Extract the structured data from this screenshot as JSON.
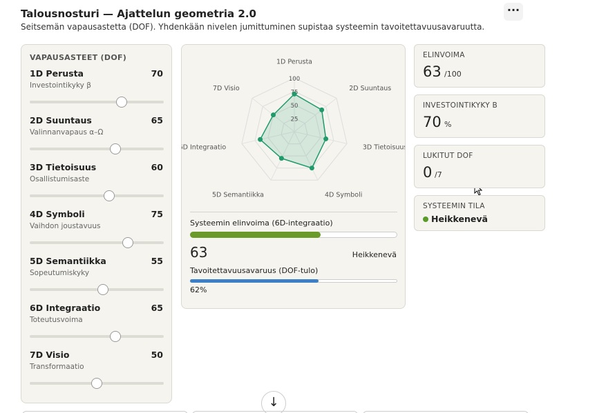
{
  "header": {
    "title": "Talousnosturi — Ajattelun geometria 2.0",
    "subtitle": "Seitsemän vapausastetta (DOF). Yhdenkään nivelen jumittuminen supistaa systeemin tavoitettavuusavaruutta."
  },
  "dof_panel": {
    "title": "VAPAUSASTEET (DOF)",
    "slider_range": [
      0,
      100
    ],
    "items": [
      {
        "name": "1D Perusta",
        "desc": "Investointikyky β",
        "value": 70
      },
      {
        "name": "2D Suuntaus",
        "desc": "Valinnanvapaus α–Ω",
        "value": 65
      },
      {
        "name": "3D Tietoisuus",
        "desc": "Osallistumisaste",
        "value": 60
      },
      {
        "name": "4D Symboli",
        "desc": "Vaihdon joustavuus",
        "value": 75
      },
      {
        "name": "5D Semantiikka",
        "desc": "Sopeutumiskyky",
        "value": 55
      },
      {
        "name": "6D Integraatio",
        "desc": "Toteutusvoima",
        "value": 65
      },
      {
        "name": "7D Visio",
        "desc": "Transformaatio",
        "value": 50
      }
    ]
  },
  "radar": {
    "type": "radar",
    "rlim": [
      0,
      100
    ],
    "rticks": [
      25,
      50,
      75,
      100
    ],
    "color": "#1f9a6a"
  },
  "vitality": {
    "label": "Systeemin elinvoima (6D-integraatio)",
    "value": 63,
    "xlim": [
      0,
      100
    ],
    "status": "Heikkenevä",
    "color": "#6a9a2a"
  },
  "reach": {
    "label": "Tavoitettavuusavaruus (DOF-tulo)",
    "value": 62,
    "value_label": "62%",
    "xlim": [
      0,
      100
    ],
    "color": "#3b80c6"
  },
  "stats": [
    {
      "label": "ELINVOIMA",
      "value": 63,
      "unit": "/100"
    },
    {
      "label": "INVESTOINTIKYKY Β",
      "value": 70,
      "unit": "%"
    },
    {
      "label": "LUKITUT DOF",
      "value": 0,
      "unit": "/7"
    },
    {
      "label": "SYSTEEMIN TILA",
      "status": "Heikkenevä"
    }
  ]
}
